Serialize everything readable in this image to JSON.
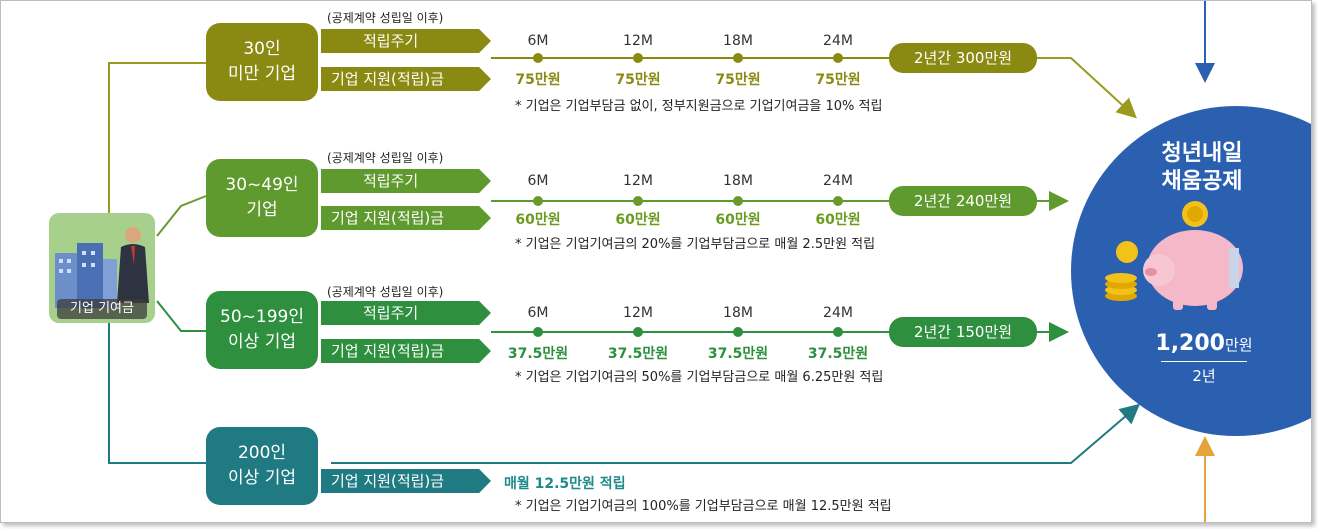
{
  "left_box": {
    "label": "기업 기여금"
  },
  "tiers": [
    {
      "name_line1": "30인",
      "name_line2": "미만 기업",
      "contract_note": "(공제계약 성립일 이후)",
      "cycle_label": "적립주기",
      "support_label": "기업 지원(적립)금",
      "ticks": [
        "6M",
        "12M",
        "18M",
        "24M"
      ],
      "amounts": [
        "75만원",
        "75만원",
        "75만원",
        "75만원"
      ],
      "note": "* 기업은 기업부담금 없이, 정부지원금으로 기업기여금을 10% 적립",
      "total": "2년간 300만원",
      "color": "#8a8a12",
      "amount_color": "#8a8a12"
    },
    {
      "name_line1": "30~49인",
      "name_line2": "기업",
      "contract_note": "(공제계약 성립일 이후)",
      "cycle_label": "적립주기",
      "support_label": "기업 지원(적립)금",
      "ticks": [
        "6M",
        "12M",
        "18M",
        "24M"
      ],
      "amounts": [
        "60만원",
        "60만원",
        "60만원",
        "60만원"
      ],
      "note": "* 기업은 기업기여금의 20%를 기업부담금으로 매월 2.5만원 적립",
      "total": "2년간 240만원",
      "color": "#5f9a2e",
      "amount_color": "#6a9a1f"
    },
    {
      "name_line1": "50~199인",
      "name_line2": "이상 기업",
      "contract_note": "(공제계약 성립일 이후)",
      "cycle_label": "적립주기",
      "support_label": "기업 지원(적립)금",
      "ticks": [
        "6M",
        "12M",
        "18M",
        "24M"
      ],
      "amounts": [
        "37.5만원",
        "37.5만원",
        "37.5만원",
        "37.5만원"
      ],
      "note": "* 기업은 기업기여금의 50%를 기업부담금으로 매월 6.25만원 적립",
      "total": "2년간 150만원",
      "color": "#2e8f3e",
      "amount_color": "#2e8f3e"
    },
    {
      "name_line1": "200인",
      "name_line2": "이상 기업",
      "support_label": "기업 지원(적립)금",
      "monthly": "매월 12.5만원 적립",
      "note": "* 기업은 기업기여금의 100%를 기업부담금으로 매월 12.5만원 적립",
      "color": "#1f7a82",
      "amount_color": "#1f8a8a"
    }
  ],
  "product": {
    "title_line1": "청년내일",
    "title_line2": "채움공제",
    "amount_number": "1,200",
    "amount_unit": "만원",
    "period": "2년"
  },
  "colors": {
    "blue": "#2b60b0",
    "orange": "#e8a23c",
    "arrow_blue": "#2b60b0"
  }
}
